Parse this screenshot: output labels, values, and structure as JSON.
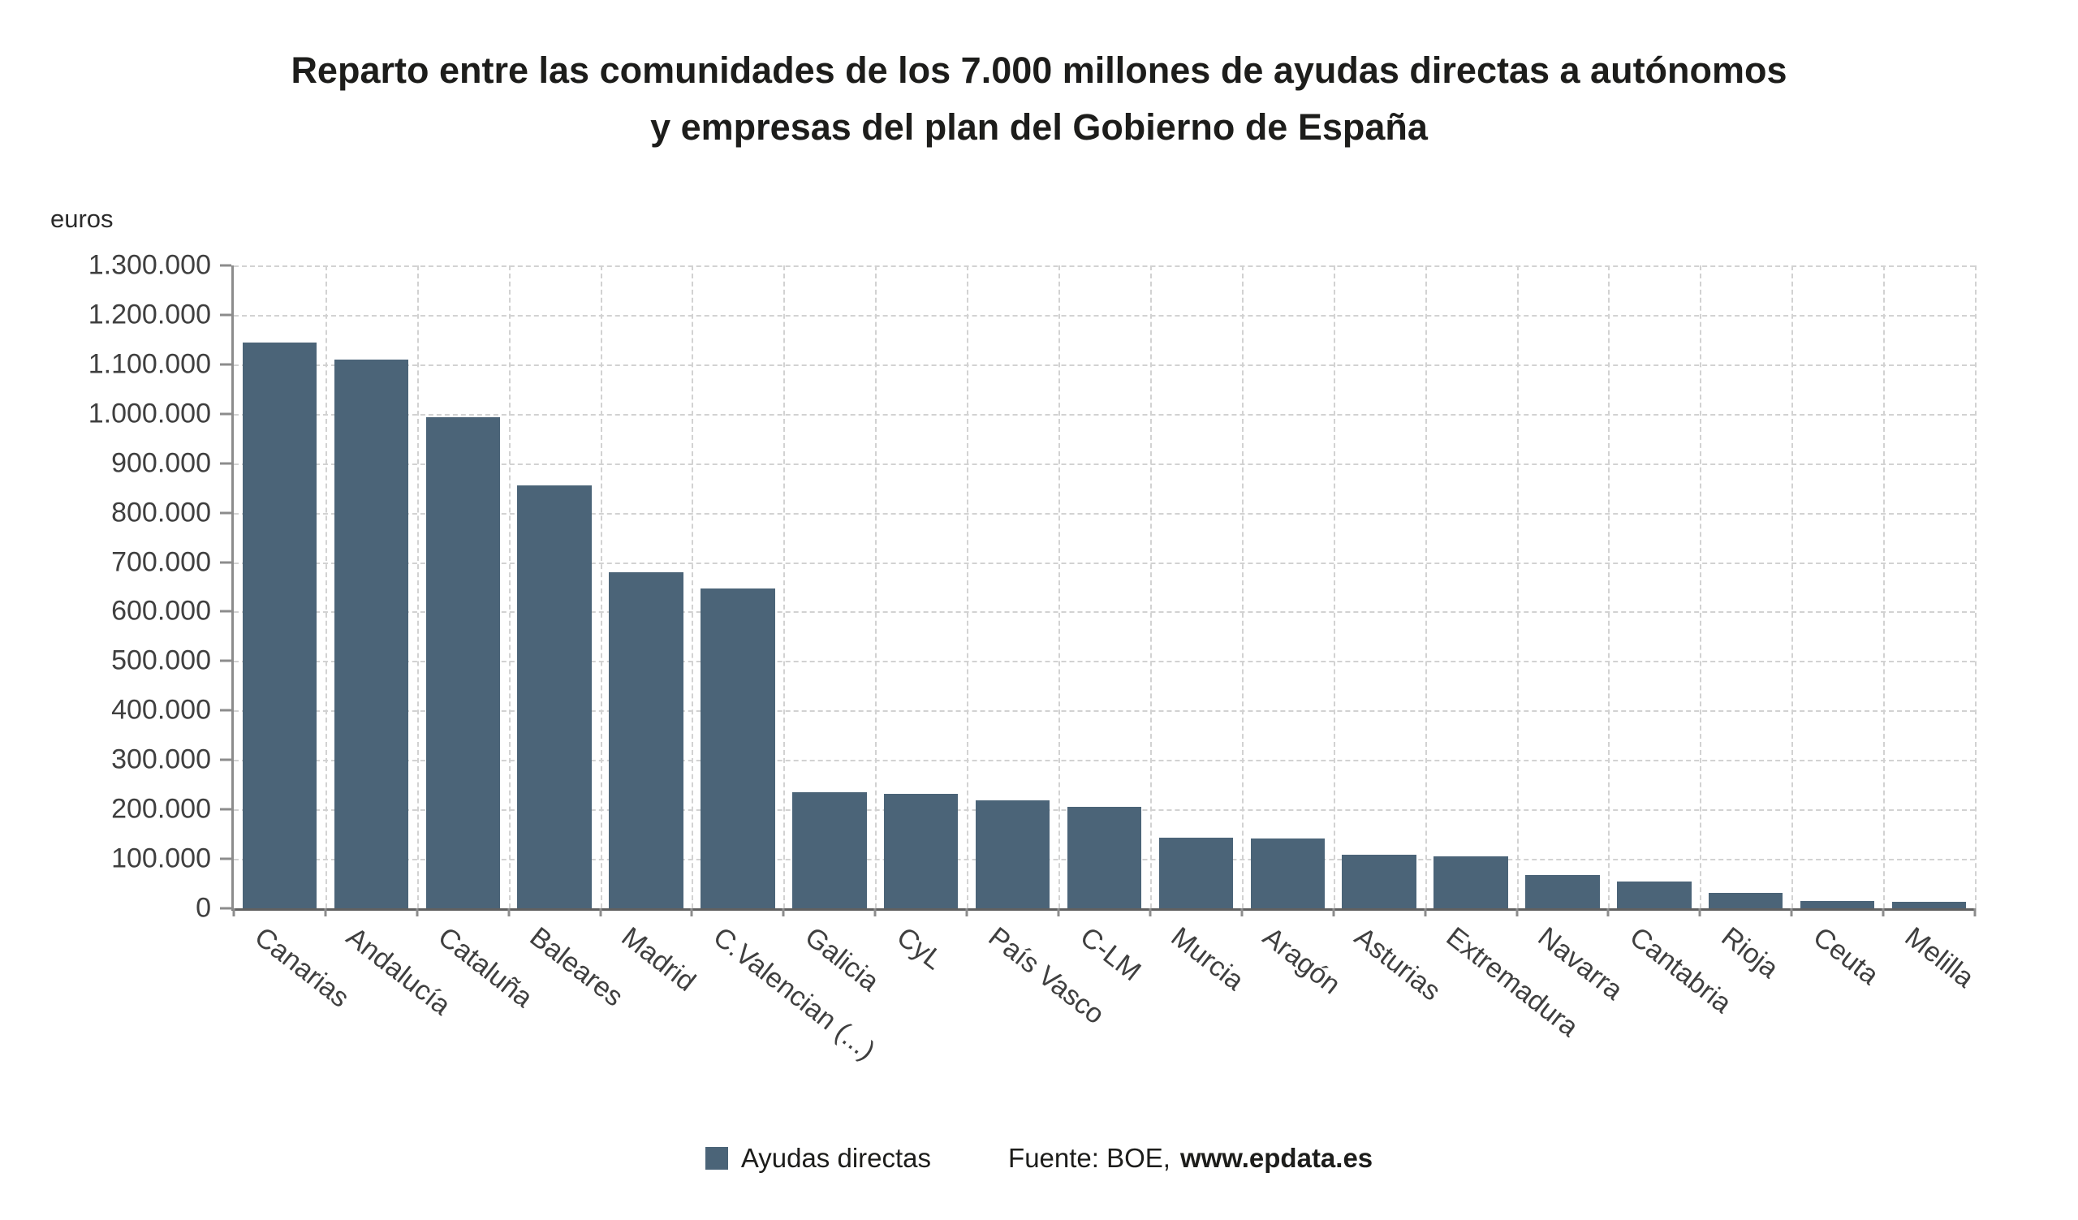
{
  "title": {
    "line1": "Reparto entre las comunidades de los 7.000 millones de ayudas directas a autónomos",
    "line2": "y empresas del plan del Gobierno de España"
  },
  "y_axis_unit": "euros",
  "legend": {
    "series_label": "Ayudas directas",
    "source_text": "Fuente: BOE,",
    "source_site": "www.epdata.es"
  },
  "colors": {
    "bar": "#4b6478",
    "title_text": "#1d1d1b",
    "axis_text": "#3f3f3f",
    "grid": "#d2d2d2",
    "axis_line": "#8c8c8c"
  },
  "chart_data": {
    "type": "bar",
    "title": "Reparto entre las comunidades de los 7.000 millones de ayudas directas a autónomos y empresas del plan del Gobierno de España",
    "xlabel": "",
    "ylabel": "euros",
    "ylim": [
      0,
      1300000
    ],
    "ytick_step": 100000,
    "ytick_format": "thousands-dot",
    "grid": "dashed-both",
    "legend_position": "bottom",
    "categories": [
      "Canarias",
      "Andalucía",
      "Cataluña",
      "Baleares",
      "Madrid",
      "C.Valencian (...)",
      "Galicia",
      "CyL",
      "País Vasco",
      "C-LM",
      "Murcia",
      "Aragón",
      "Asturias",
      "Extremadura",
      "Navarra",
      "Cantabria",
      "Rioja",
      "Ceuta",
      "Melilla"
    ],
    "series": [
      {
        "name": "Ayudas directas",
        "values": [
          1144000,
          1109000,
          993000,
          855000,
          679000,
          647000,
          234000,
          232000,
          218000,
          206000,
          143000,
          141000,
          108000,
          105000,
          67000,
          55000,
          32000,
          14000,
          13000
        ]
      }
    ]
  }
}
